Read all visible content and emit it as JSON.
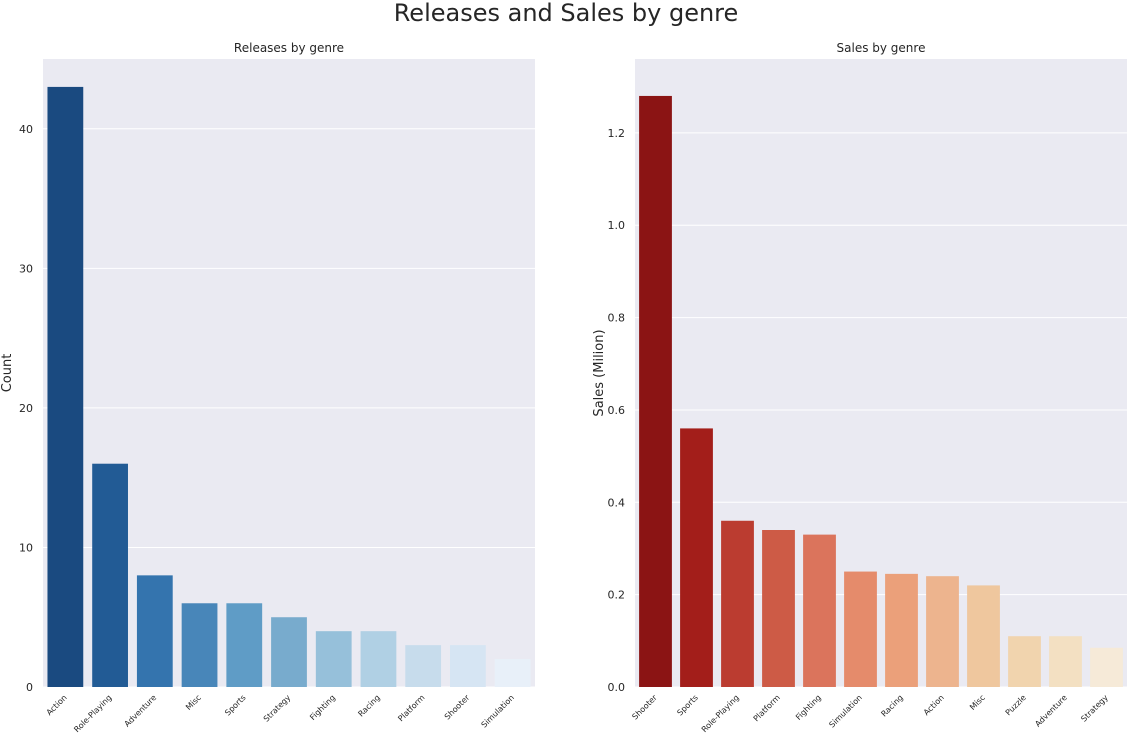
{
  "figure": {
    "suptitle": "Releases and Sales by genre"
  },
  "chart_data": [
    {
      "type": "bar",
      "title": "Releases by genre",
      "xlabel": "",
      "ylabel": "Count",
      "ylim": [
        0,
        45
      ],
      "yticks": [
        0,
        10,
        20,
        30,
        40
      ],
      "ytick_labels": [
        "0",
        "10",
        "20",
        "30",
        "40"
      ],
      "grid": true,
      "categories": [
        "Action",
        "Role-Playing",
        "Adventure",
        "Misc",
        "Sports",
        "Strategy",
        "Fighting",
        "Racing",
        "Platform",
        "Shooter",
        "Simulation"
      ],
      "values": [
        43,
        16,
        8,
        6,
        6,
        5,
        4,
        4,
        3,
        3,
        2
      ],
      "colors": [
        "#1a4a80",
        "#225b95",
        "#3474ae",
        "#4886b9",
        "#5f9cc6",
        "#78abcd",
        "#96c0da",
        "#b0d0e4",
        "#c7dcec",
        "#d6e5f3",
        "#e8f0f9"
      ]
    },
    {
      "type": "bar",
      "title": "Sales by genre",
      "xlabel": "",
      "ylabel": "Sales (Milion)",
      "ylim": [
        0,
        1.36
      ],
      "yticks": [
        0,
        0.2,
        0.4,
        0.6,
        0.8,
        1.0,
        1.2
      ],
      "ytick_labels": [
        "0.0",
        "0.2",
        "0.4",
        "0.6",
        "0.8",
        "1.0",
        "1.2"
      ],
      "grid": true,
      "categories": [
        "Shooter",
        "Sports",
        "Role-Playing",
        "Platform",
        "Fighting",
        "Simulation",
        "Racing",
        "Action",
        "Misc",
        "Puzzle",
        "Adventure",
        "Strategy"
      ],
      "values": [
        1.28,
        0.56,
        0.36,
        0.34,
        0.33,
        0.25,
        0.245,
        0.24,
        0.22,
        0.11,
        0.11,
        0.085
      ],
      "colors": [
        "#8b1414",
        "#a31e1a",
        "#bb3c30",
        "#cd5b46",
        "#db745c",
        "#e58b6b",
        "#eba07a",
        "#edb48e",
        "#efc79e",
        "#f1d4ae",
        "#f3e0c2",
        "#f6ead8"
      ]
    }
  ]
}
